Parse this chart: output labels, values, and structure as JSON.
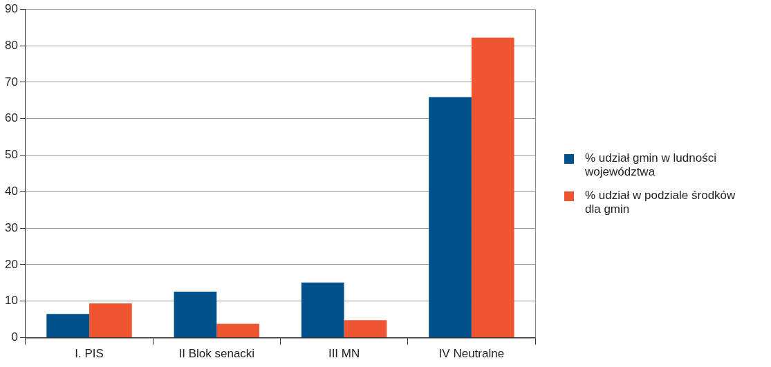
{
  "chart_data": {
    "type": "bar",
    "categories": [
      "I. PIS",
      "II Blok senacki",
      "III MN",
      "IV Neutralne"
    ],
    "series": [
      {
        "name": "% udział gmin w ludności województwa",
        "color": "#00508c",
        "values": [
          6.5,
          12.6,
          15.1,
          65.9
        ]
      },
      {
        "name": "% udział w podziale środków dla gmin",
        "color": "#f05532",
        "values": [
          9.4,
          3.8,
          4.8,
          82.2
        ]
      }
    ],
    "ylim": [
      0,
      90
    ],
    "yticks": [
      0,
      10,
      20,
      30,
      40,
      50,
      60,
      70,
      80,
      90
    ],
    "grid": "y",
    "legend": "right"
  }
}
